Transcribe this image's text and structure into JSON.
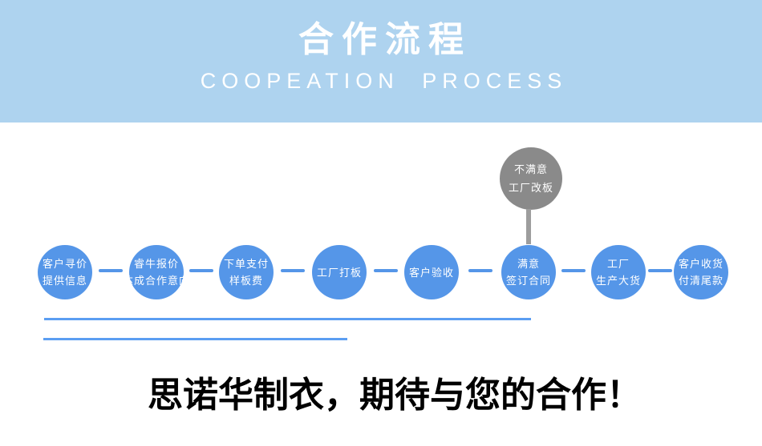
{
  "header": {
    "title": "合作流程",
    "subtitle": "COOPEATION PROCESS",
    "bg_color": "#aed3ef",
    "title_color": "#ffffff",
    "subtitle_color": "#ffffff"
  },
  "flow": {
    "steps": [
      {
        "lines": [
          "客户寻价",
          "提供信息"
        ]
      },
      {
        "lines": [
          "睿牛报价",
          "达成合作意向"
        ]
      },
      {
        "lines": [
          "下单支付",
          "样板费"
        ]
      },
      {
        "lines": [
          "工厂打板"
        ]
      },
      {
        "lines": [
          "客户验收"
        ]
      },
      {
        "lines": [
          "满意",
          "签订合同"
        ]
      },
      {
        "lines": [
          "工厂",
          "生产大货"
        ]
      },
      {
        "lines": [
          "客户收货",
          "付清尾款"
        ]
      }
    ],
    "alt_step": {
      "lines": [
        "不满意",
        "工厂改板"
      ]
    },
    "circle_color": "#5596e8",
    "connector_color": "#5596e8",
    "alt_circle_color": "#8a8a8a",
    "alt_stem_color": "#9d9d9d"
  },
  "decor": {
    "line_color": "#5b9ef2"
  },
  "footer": {
    "slogan": "思诺华制衣，期待与您的合作！",
    "text_color": "#000000"
  }
}
